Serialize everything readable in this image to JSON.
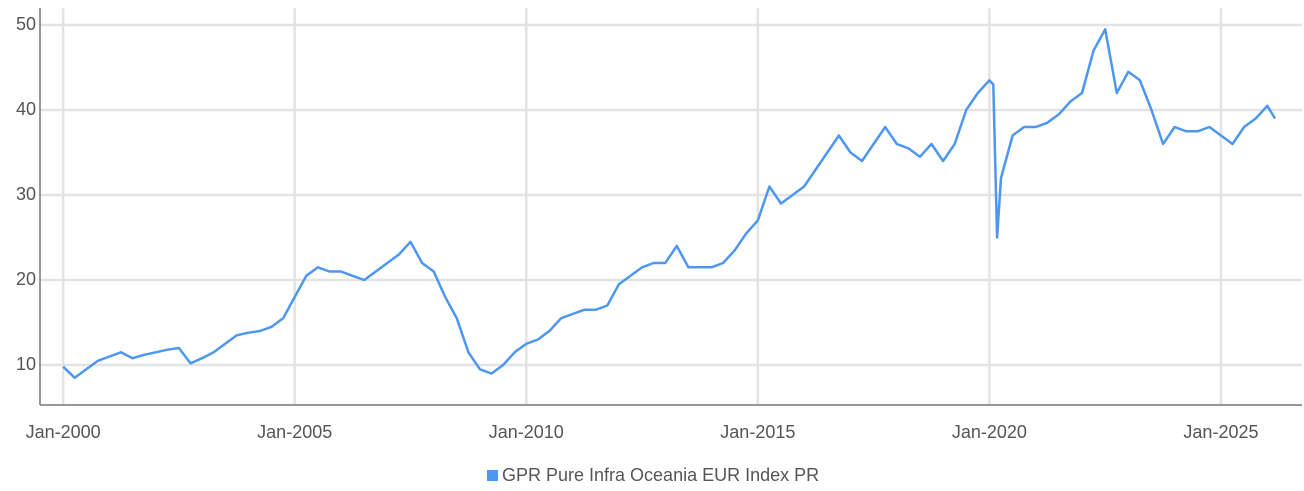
{
  "chart_data": {
    "type": "line",
    "x": [
      "2000-01",
      "2000-04",
      "2000-07",
      "2000-10",
      "2001-01",
      "2001-04",
      "2001-07",
      "2001-10",
      "2002-01",
      "2002-04",
      "2002-07",
      "2002-10",
      "2003-01",
      "2003-04",
      "2003-07",
      "2003-10",
      "2004-01",
      "2004-04",
      "2004-07",
      "2004-10",
      "2005-01",
      "2005-04",
      "2005-07",
      "2005-10",
      "2006-01",
      "2006-04",
      "2006-07",
      "2006-10",
      "2007-01",
      "2007-04",
      "2007-07",
      "2007-10",
      "2008-01",
      "2008-04",
      "2008-07",
      "2008-10",
      "2009-01",
      "2009-04",
      "2009-07",
      "2009-10",
      "2010-01",
      "2010-04",
      "2010-07",
      "2010-10",
      "2011-01",
      "2011-04",
      "2011-07",
      "2011-10",
      "2012-01",
      "2012-04",
      "2012-07",
      "2012-10",
      "2013-01",
      "2013-04",
      "2013-07",
      "2013-10",
      "2014-01",
      "2014-04",
      "2014-07",
      "2014-10",
      "2015-01",
      "2015-04",
      "2015-07",
      "2015-10",
      "2016-01",
      "2016-04",
      "2016-07",
      "2016-10",
      "2017-01",
      "2017-04",
      "2017-07",
      "2017-10",
      "2018-01",
      "2018-04",
      "2018-07",
      "2018-10",
      "2019-01",
      "2019-04",
      "2019-07",
      "2019-10",
      "2020-01",
      "2020-02",
      "2020-03",
      "2020-04",
      "2020-07",
      "2020-10",
      "2021-01",
      "2021-04",
      "2021-07",
      "2021-10",
      "2022-01",
      "2022-04",
      "2022-07",
      "2022-10",
      "2023-01",
      "2023-04",
      "2023-07",
      "2023-10",
      "2024-01",
      "2024-04",
      "2024-07",
      "2024-10",
      "2025-01",
      "2025-04",
      "2025-07",
      "2025-10",
      "2026-01",
      "2026-03"
    ],
    "series": [
      {
        "name": "GPR Pure Infra Oceania EUR Index PR",
        "color": "#4e97f0",
        "values": [
          9.8,
          8.5,
          9.5,
          10.5,
          11,
          11.5,
          10.8,
          11.2,
          11.5,
          11.8,
          12,
          10.2,
          10.8,
          11.5,
          12.5,
          13.5,
          13.8,
          14,
          14.5,
          15.5,
          18,
          20.5,
          21.5,
          21,
          21,
          20.5,
          20,
          21,
          22,
          23,
          24.5,
          22,
          21,
          18,
          15.5,
          11.5,
          9.5,
          9,
          10,
          11.5,
          12.5,
          13,
          14,
          15.5,
          16,
          16.5,
          16.5,
          17,
          19.5,
          20.5,
          21.5,
          22,
          22,
          24,
          21.5,
          21.5,
          21.5,
          22,
          23.5,
          25.5,
          27,
          31,
          29,
          30,
          31,
          33,
          35,
          37,
          35,
          34,
          36,
          38,
          36,
          35.5,
          34.5,
          36,
          34,
          36,
          40,
          42,
          43.5,
          43,
          25,
          32,
          37,
          38,
          38,
          38.5,
          39.5,
          41,
          42,
          47,
          49.5,
          42,
          44.5,
          43.5,
          40,
          36,
          38,
          37.5,
          37.5,
          38,
          37,
          36,
          38,
          39,
          40.5,
          39
        ]
      }
    ],
    "xlim": [
      "1999-07",
      "2026-10"
    ],
    "xticks": [
      {
        "value": "2000-01",
        "label": "Jan-2000"
      },
      {
        "value": "2005-01",
        "label": "Jan-2005"
      },
      {
        "value": "2010-01",
        "label": "Jan-2010"
      },
      {
        "value": "2015-01",
        "label": "Jan-2015"
      },
      {
        "value": "2020-01",
        "label": "Jan-2020"
      },
      {
        "value": "2025-01",
        "label": "Jan-2025"
      }
    ],
    "ylim": [
      5.3,
      52
    ],
    "yticks": [
      10,
      20,
      30,
      40,
      50
    ],
    "grid": true,
    "legend": "bottom"
  }
}
